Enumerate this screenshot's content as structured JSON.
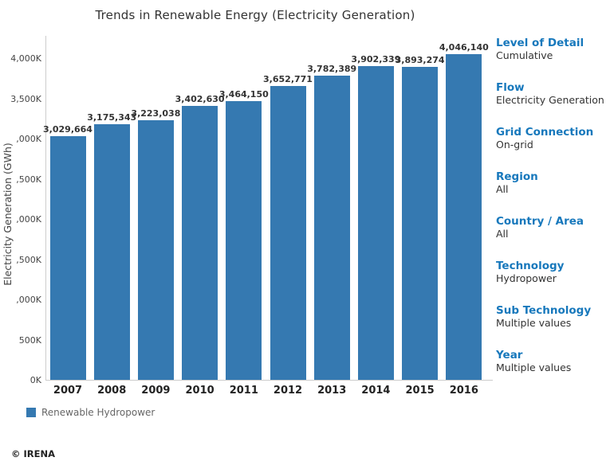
{
  "title": "Trends in Renewable Energy (Electricity Generation)",
  "chart_data": {
    "type": "bar",
    "title": "Trends in Renewable Energy (Electricity Generation)",
    "categories": [
      "2007",
      "2008",
      "2009",
      "2010",
      "2011",
      "2012",
      "2013",
      "2014",
      "2015",
      "2016"
    ],
    "values": [
      3029664,
      3175343,
      3223038,
      3402630,
      3464150,
      3652771,
      3782389,
      3902339,
      3893274,
      4046140
    ],
    "value_labels": [
      "3,029,664",
      "3,175,343",
      "3,223,038",
      "3,402,630",
      "3,464,150",
      "3,652,771",
      "3,782,389",
      "3,902,339",
      "3,893,274",
      "4,046,140"
    ],
    "series_name": "Renewable Hydropower",
    "xlabel": "",
    "ylabel": "Electricity Generation (GWh)",
    "ylim": [
      0,
      4000000
    ],
    "ytick_interval": 500000,
    "ytick_labels_displayed_top_to_bottom": [
      "4,000K",
      "3,500K",
      ",000K",
      ",500K",
      ",000K",
      ",500K",
      ",000K",
      "500K",
      "0K"
    ],
    "grid": false,
    "legend_position": "bottom-left",
    "bar_color": "#3579b1"
  },
  "legend": {
    "swatch_color": "#3579b1",
    "label": "Renewable Hydropower"
  },
  "sidebar": {
    "sections": [
      {
        "heading": "Level of Detail",
        "value": "Cumulative"
      },
      {
        "heading": "Flow",
        "value": "Electricity Generation"
      },
      {
        "heading": "Grid Connection",
        "value": "On-grid"
      },
      {
        "heading": "Region",
        "value": "All"
      },
      {
        "heading": "Country / Area",
        "value": "All"
      },
      {
        "heading": "Technology",
        "value": "Hydropower"
      },
      {
        "heading": "Sub Technology",
        "value": "Multiple values"
      },
      {
        "heading": "Year",
        "value": "Multiple values"
      }
    ]
  },
  "footer": {
    "copyright": "© IRENA"
  }
}
